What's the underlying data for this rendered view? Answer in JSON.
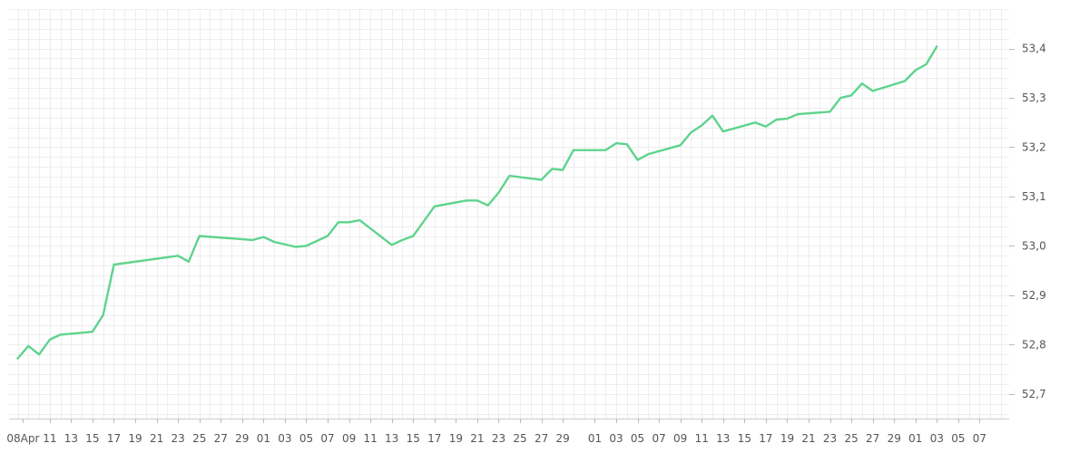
{
  "chart_data": {
    "type": "line",
    "title": "",
    "xlabel": "",
    "ylabel": "",
    "ylim": [
      52.65,
      53.48
    ],
    "y_ticks": [
      "52,7",
      "52,8",
      "52,9",
      "53,0",
      "53,1",
      "53,2",
      "53,3",
      "53,4"
    ],
    "y_tick_values": [
      52.7,
      52.8,
      52.9,
      53.0,
      53.1,
      53.2,
      53.3,
      53.4
    ],
    "y_axis_position": "right",
    "grid": true,
    "legend": "none",
    "line_color": "#5fd38d",
    "x_range": [
      0,
      92
    ],
    "x_tick_labels": [
      "08Apr",
      "11",
      "13",
      "15",
      "17",
      "19",
      "21",
      "23",
      "25",
      "27",
      "29",
      "01",
      "03",
      "05",
      "07",
      "09",
      "11",
      "13",
      "15",
      "17",
      "19",
      "21",
      "23",
      "25",
      "27",
      "29",
      "01",
      "03",
      "05",
      "07",
      "09",
      "11",
      "13",
      "15",
      "17",
      "19",
      "21",
      "23",
      "25",
      "27",
      "29",
      "01",
      "03",
      "05",
      "07"
    ],
    "x_tick_positions": [
      0.5,
      3,
      5,
      7,
      9,
      11,
      13,
      15,
      17,
      19,
      21,
      23,
      25,
      27,
      29,
      31,
      33,
      35,
      37,
      39,
      41,
      43,
      45,
      47,
      49,
      51,
      54,
      56,
      58,
      60,
      62,
      64,
      66,
      68,
      70,
      72,
      74,
      76,
      78,
      80,
      82,
      84,
      86,
      88,
      90
    ],
    "series": [
      {
        "x": [
          0,
          1,
          2,
          3,
          4,
          7,
          8,
          9,
          15,
          16,
          17,
          22,
          23,
          24,
          26,
          27,
          29,
          30,
          31,
          32,
          35,
          36,
          37,
          38,
          39,
          42,
          43,
          44,
          45,
          46,
          49,
          50,
          51,
          52,
          55,
          56,
          57,
          58,
          59,
          62,
          63,
          64,
          65,
          66,
          69,
          70,
          71,
          72,
          73,
          76,
          77,
          78,
          79,
          80,
          83,
          84,
          85,
          86
        ],
        "y": [
          52.772,
          52.797,
          52.78,
          52.81,
          52.82,
          52.826,
          52.86,
          52.962,
          52.98,
          52.968,
          53.02,
          53.012,
          53.018,
          53.008,
          52.998,
          53.0,
          53.02,
          53.048,
          53.048,
          53.052,
          53.002,
          53.012,
          53.02,
          53.05,
          53.08,
          53.092,
          53.092,
          53.082,
          53.108,
          53.142,
          53.134,
          53.156,
          53.154,
          53.194,
          53.194,
          53.208,
          53.206,
          53.174,
          53.186,
          53.204,
          53.23,
          53.244,
          53.264,
          53.232,
          53.25,
          53.242,
          53.256,
          53.258,
          53.267,
          53.272,
          53.3,
          53.305,
          53.329,
          53.314,
          53.334,
          53.356,
          53.368,
          53.404
        ]
      }
    ]
  }
}
